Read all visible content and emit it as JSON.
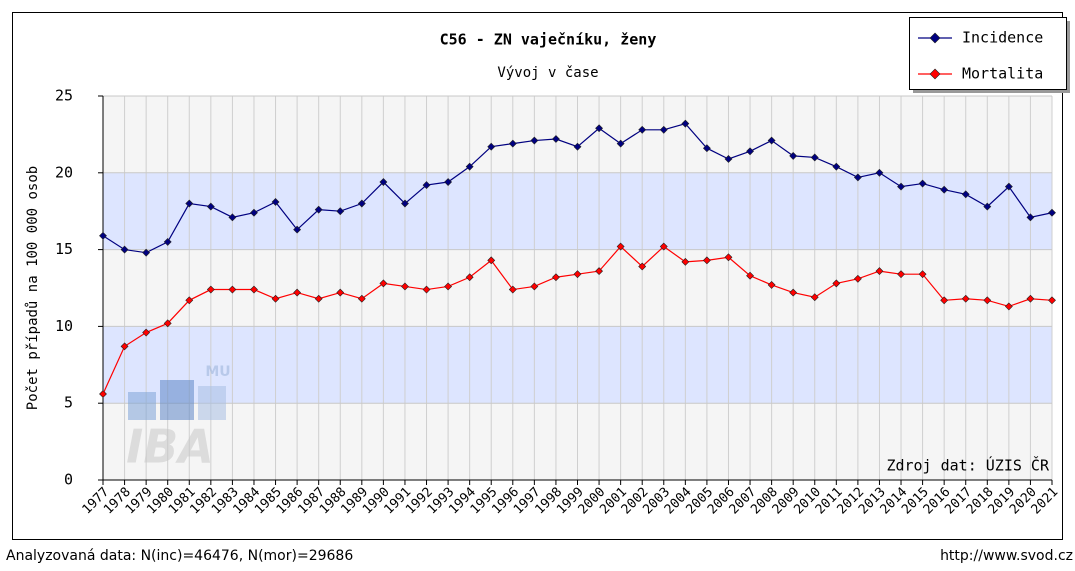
{
  "chart_data": {
    "type": "line",
    "title": "C56 - ZN vaječníku, ženy",
    "subtitle": "Vývoj v čase",
    "y_label": "Počet případů na 100 000 osob",
    "source_note": "Zdroj dat: ÚZIS ČR",
    "footer_left": "Analyzovaná data: N(inc)=46476, N(mor)=29686",
    "footer_right": "http://www.svod.cz",
    "logo": {
      "top": "MU",
      "main": "IBA"
    },
    "categories": [
      "1977",
      "1978",
      "1979",
      "1980",
      "1981",
      "1982",
      "1983",
      "1984",
      "1985",
      "1986",
      "1987",
      "1988",
      "1989",
      "1990",
      "1991",
      "1992",
      "1993",
      "1994",
      "1995",
      "1996",
      "1997",
      "1998",
      "1999",
      "2000",
      "2001",
      "2002",
      "2003",
      "2004",
      "2005",
      "2006",
      "2007",
      "2008",
      "2009",
      "2010",
      "2011",
      "2012",
      "2013",
      "2014",
      "2015",
      "2016",
      "2017",
      "2018",
      "2019",
      "2020",
      "2021"
    ],
    "series": [
      {
        "name": "Incidence",
        "color": "#000080",
        "values": [
          15.9,
          15.0,
          14.8,
          15.5,
          18.0,
          17.8,
          17.1,
          17.4,
          18.1,
          16.3,
          17.6,
          17.5,
          18.0,
          19.4,
          18.0,
          19.2,
          19.4,
          20.4,
          21.7,
          21.9,
          22.1,
          22.2,
          21.7,
          22.9,
          21.9,
          22.8,
          22.8,
          23.2,
          21.6,
          20.9,
          21.4,
          22.1,
          21.1,
          21.0,
          20.4,
          19.7,
          20.0,
          19.1,
          19.3,
          18.9,
          18.6,
          17.8,
          19.1,
          17.1,
          17.4
        ]
      },
      {
        "name": "Mortalita",
        "color": "#ff0000",
        "values": [
          5.6,
          8.7,
          9.6,
          10.2,
          11.7,
          12.4,
          12.4,
          12.4,
          11.8,
          12.2,
          11.8,
          12.2,
          11.8,
          12.8,
          12.6,
          12.4,
          12.6,
          13.2,
          14.3,
          12.4,
          12.6,
          13.2,
          13.4,
          13.6,
          15.2,
          13.9,
          15.2,
          14.2,
          14.3,
          14.5,
          13.3,
          12.7,
          12.2,
          11.9,
          12.8,
          13.1,
          13.6,
          13.4,
          13.4,
          11.7,
          11.8,
          11.7,
          11.3,
          11.8,
          11.7
        ]
      }
    ],
    "ylim": [
      0,
      25
    ],
    "yticks": [
      0,
      5,
      10,
      15,
      20,
      25
    ],
    "grid": true,
    "band_colors": [
      "#f5f5f5",
      "#dde5ff"
    ],
    "legend": "top-right"
  }
}
